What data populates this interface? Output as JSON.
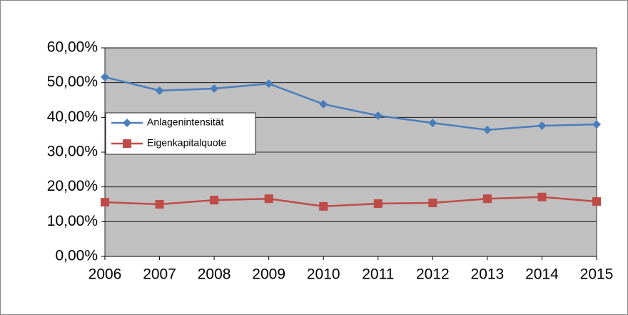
{
  "chart_data": {
    "type": "line",
    "categories": [
      "2006",
      "2007",
      "2008",
      "2009",
      "2010",
      "2011",
      "2012",
      "2013",
      "2014",
      "2015"
    ],
    "series": [
      {
        "name": "Anlagenintensität",
        "color": "#4a7ebb",
        "marker": "diamond",
        "values": [
          51.6,
          47.7,
          48.3,
          49.7,
          43.8,
          40.5,
          38.4,
          36.4,
          37.6,
          38.0
        ]
      },
      {
        "name": "Eigenkapitalquote",
        "color": "#be4b48",
        "marker": "square",
        "values": [
          15.6,
          15.0,
          16.2,
          16.6,
          14.4,
          15.2,
          15.4,
          16.6,
          17.1,
          15.8
        ]
      }
    ],
    "ylim": [
      0,
      60
    ],
    "yticks": [
      {
        "value": 0,
        "label": "0,00%"
      },
      {
        "value": 10,
        "label": "10,00%"
      },
      {
        "value": 20,
        "label": "20,00%"
      },
      {
        "value": 30,
        "label": "30,00%"
      },
      {
        "value": 40,
        "label": "40,00%"
      },
      {
        "value": 50,
        "label": "50,00%"
      },
      {
        "value": 60,
        "label": "60,00%"
      }
    ],
    "grid": true,
    "legend": "left",
    "plot_background": "#c0c0c0"
  }
}
